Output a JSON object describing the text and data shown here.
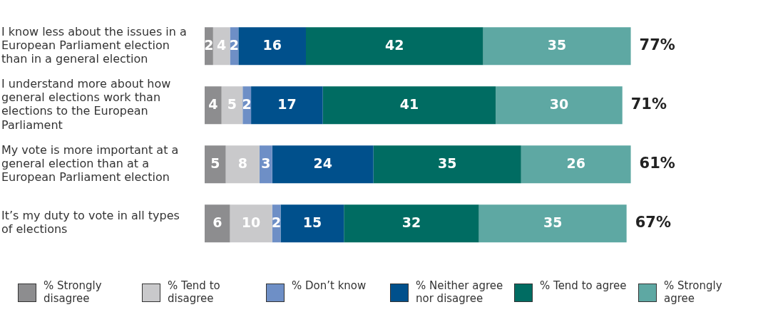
{
  "chart_data": {
    "type": "bar",
    "orientation": "horizontal",
    "stacked": true,
    "tick_labels": "y",
    "legend": "bottom",
    "data_labels": true,
    "categories": [
      "I know less about the issues in a European Parliament election than in a general election",
      "I understand more about how general elections work than elections to the European Parliament",
      "My vote is more important at a general election than at a European Parliament election",
      "It’s my duty to vote in all types of elections"
    ],
    "series": [
      {
        "name": "% Strongly disagree",
        "color": "#8d8d8f",
        "values": [
          2,
          4,
          5,
          6
        ]
      },
      {
        "name": "% Tend to disagree",
        "color": "#c9c9cb",
        "values": [
          4,
          5,
          8,
          10
        ]
      },
      {
        "name": "% Don’t know",
        "color": "#6e8fc6",
        "values": [
          2,
          2,
          3,
          2
        ]
      },
      {
        "name": "% Neither agree nor disagree",
        "color": "#00508c",
        "values": [
          16,
          17,
          24,
          15
        ]
      },
      {
        "name": "% Tend to agree",
        "color": "#006c62",
        "values": [
          42,
          41,
          35,
          32
        ]
      },
      {
        "name": "% Strongly agree",
        "color": "#5ea8a3",
        "values": [
          35,
          30,
          26,
          35
        ]
      }
    ],
    "annotations": [
      "77%",
      "71%",
      "61%",
      "67%"
    ]
  }
}
